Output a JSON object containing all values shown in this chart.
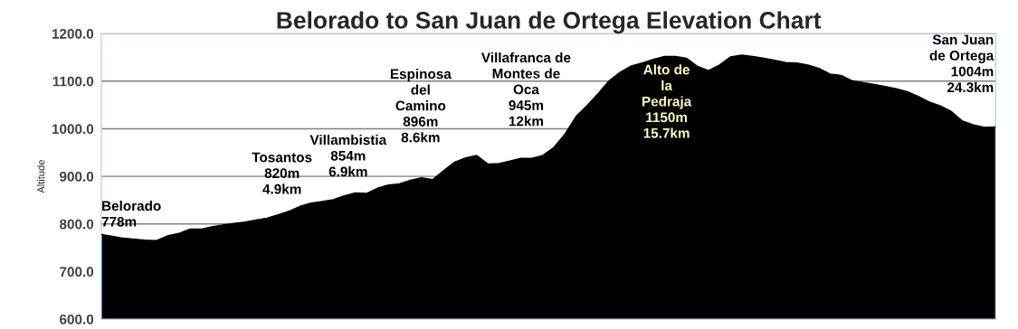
{
  "chart_data": {
    "type": "area",
    "title": "Belorado to San Juan de Ortega Elevation Chart",
    "ylabel": "Altitude",
    "categories": [
      null,
      null,
      null,
      null,
      null,
      null,
      null,
      null,
      null,
      null,
      null,
      null,
      null,
      null,
      null,
      null,
      null,
      null,
      null,
      null,
      null,
      null,
      null,
      null,
      null,
      null,
      null,
      null,
      null,
      null,
      null,
      null,
      null,
      null,
      null,
      null,
      null,
      null,
      null,
      null,
      null,
      null,
      null,
      null,
      null,
      null,
      null,
      null,
      null,
      null,
      null,
      null,
      null,
      null,
      null,
      null,
      null,
      null,
      null,
      null,
      null,
      null,
      null,
      null,
      null,
      null,
      null,
      null,
      null,
      null,
      null,
      null,
      null,
      null,
      null,
      null,
      null,
      null,
      null,
      null,
      null,
      null
    ],
    "series": [
      {
        "color": "#000000",
        "values": [
          778,
          774,
          770,
          768,
          766,
          765,
          775,
          780,
          789,
          789,
          794,
          798,
          801,
          804,
          808,
          812,
          819,
          827,
          837,
          844,
          847,
          851,
          859,
          865,
          864,
          875,
          882,
          884,
          892,
          897,
          893,
          912,
          930,
          939,
          944,
          926,
          927,
          932,
          938,
          938,
          944,
          961,
          989,
          1026,
          1049,
          1074,
          1101,
          1119,
          1132,
          1138,
          1146,
          1152,
          1152,
          1148,
          1131,
          1122,
          1134,
          1151,
          1155,
          1152,
          1148,
          1144,
          1139,
          1138,
          1134,
          1127,
          1115,
          1112,
          1101,
          1097,
          1093,
          1089,
          1084,
          1078,
          1068,
          1056,
          1048,
          1036,
          1016,
          1008,
          1003,
          1004
        ]
      }
    ],
    "ylim": [
      600,
      1200
    ],
    "yticks": [
      {
        "value": 600,
        "label": "600.0"
      },
      {
        "value": 700,
        "label": "700.0"
      },
      {
        "value": 800,
        "label": "800.0"
      },
      {
        "value": 900,
        "label": "900.0"
      },
      {
        "value": 1000,
        "label": "1000.0"
      },
      {
        "value": 1100,
        "label": "1100.0"
      },
      {
        "value": 1200,
        "label": "1200.0"
      }
    ],
    "tick_labels": "y",
    "grid": "y",
    "annotations": [
      "Belorado\n778m",
      "Tosantos\n820m\n4.9km",
      "Villambistia\n854m\n6.9km",
      "Espinosa\ndel\nCamino\n896m\n8.6km",
      "Villafranca de\nMontes de\nOca\n945m\n12km",
      "Alto de\nla\nPedraja\n1150m\n15.7km",
      "San Juan\nde Ortega\n1004m\n24.3km"
    ]
  }
}
